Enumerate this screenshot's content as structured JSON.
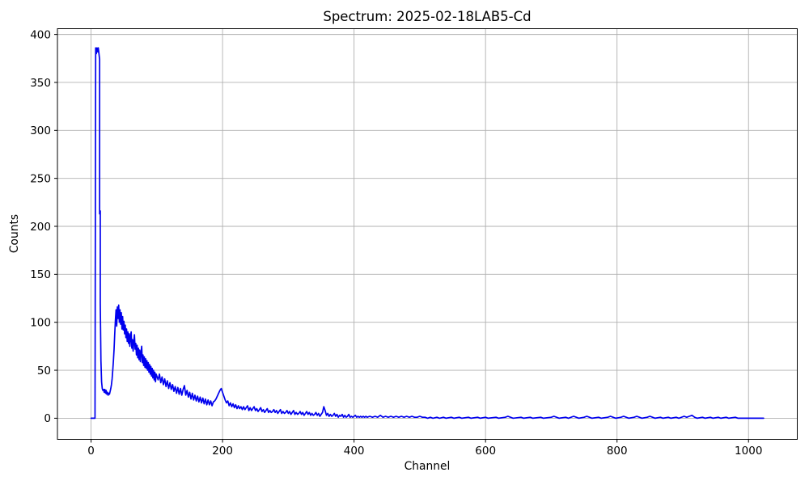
{
  "chart_data": {
    "type": "line",
    "title": "Spectrum: 2025-02-18LAB5-Cd",
    "xlabel": "Channel",
    "ylabel": "Counts",
    "x_ticks": [
      0,
      200,
      400,
      600,
      800,
      1000
    ],
    "y_ticks": [
      0,
      50,
      100,
      150,
      200,
      250,
      300,
      350,
      400
    ],
    "xlim": [
      -51.15,
      1074.15
    ],
    "ylim": [
      -22,
      406
    ],
    "grid": true,
    "legend": null,
    "line_color": "#0000ee",
    "grid_color": "#b0b0b0",
    "spine_color": "#000000",
    "peak_max_counts": 386,
    "points": [
      [
        0,
        0
      ],
      [
        6,
        0
      ],
      [
        7,
        386
      ],
      [
        8,
        380
      ],
      [
        9,
        386
      ],
      [
        10,
        382
      ],
      [
        11,
        386
      ],
      [
        12,
        380
      ],
      [
        13,
        374
      ],
      [
        13,
        213
      ],
      [
        14,
        216
      ],
      [
        14,
        120
      ],
      [
        15,
        60
      ],
      [
        16,
        38
      ],
      [
        17,
        31
      ],
      [
        18,
        29
      ],
      [
        19,
        30
      ],
      [
        20,
        27
      ],
      [
        21,
        30
      ],
      [
        22,
        26
      ],
      [
        23,
        29
      ],
      [
        24,
        25
      ],
      [
        25,
        27
      ],
      [
        26,
        24
      ],
      [
        27,
        26
      ],
      [
        28,
        25
      ],
      [
        29,
        28
      ],
      [
        30,
        31
      ],
      [
        31,
        35
      ],
      [
        32,
        41
      ],
      [
        33,
        50
      ],
      [
        34,
        60
      ],
      [
        35,
        72
      ],
      [
        36,
        88
      ],
      [
        37,
        102
      ],
      [
        38,
        113
      ],
      [
        39,
        96
      ],
      [
        40,
        116
      ],
      [
        41,
        104
      ],
      [
        42,
        118
      ],
      [
        43,
        100
      ],
      [
        44,
        113
      ],
      [
        45,
        98
      ],
      [
        46,
        110
      ],
      [
        47,
        93
      ],
      [
        48,
        106
      ],
      [
        49,
        92
      ],
      [
        50,
        101
      ],
      [
        51,
        88
      ],
      [
        52,
        97
      ],
      [
        53,
        84
      ],
      [
        54,
        93
      ],
      [
        55,
        80
      ],
      [
        56,
        90
      ],
      [
        57,
        78
      ],
      [
        58,
        88
      ],
      [
        59,
        75
      ],
      [
        60,
        85
      ],
      [
        61,
        90
      ],
      [
        62,
        73
      ],
      [
        63,
        82
      ],
      [
        64,
        70
      ],
      [
        65,
        80
      ],
      [
        66,
        87
      ],
      [
        67,
        72
      ],
      [
        68,
        78
      ],
      [
        69,
        66
      ],
      [
        70,
        76
      ],
      [
        71,
        63
      ],
      [
        72,
        73
      ],
      [
        73,
        61
      ],
      [
        74,
        71
      ],
      [
        75,
        59
      ],
      [
        76,
        68
      ],
      [
        77,
        75
      ],
      [
        78,
        58
      ],
      [
        79,
        66
      ],
      [
        80,
        55
      ],
      [
        81,
        64
      ],
      [
        82,
        53
      ],
      [
        83,
        62
      ],
      [
        84,
        52
      ],
      [
        85,
        60
      ],
      [
        86,
        50
      ],
      [
        87,
        58
      ],
      [
        88,
        48
      ],
      [
        89,
        56
      ],
      [
        90,
        46
      ],
      [
        91,
        54
      ],
      [
        92,
        44
      ],
      [
        93,
        52
      ],
      [
        94,
        42
      ],
      [
        95,
        50
      ],
      [
        96,
        40
      ],
      [
        97,
        48
      ],
      [
        98,
        38
      ],
      [
        99,
        46
      ],
      [
        100,
        44
      ],
      [
        102,
        40
      ],
      [
        104,
        46
      ],
      [
        106,
        37
      ],
      [
        108,
        43
      ],
      [
        110,
        35
      ],
      [
        112,
        41
      ],
      [
        114,
        33
      ],
      [
        116,
        39
      ],
      [
        118,
        31
      ],
      [
        120,
        37
      ],
      [
        122,
        30
      ],
      [
        124,
        35
      ],
      [
        126,
        28
      ],
      [
        128,
        33
      ],
      [
        130,
        26
      ],
      [
        132,
        32
      ],
      [
        134,
        25
      ],
      [
        136,
        31
      ],
      [
        138,
        24
      ],
      [
        140,
        30
      ],
      [
        142,
        34
      ],
      [
        144,
        24
      ],
      [
        146,
        29
      ],
      [
        148,
        22
      ],
      [
        150,
        27
      ],
      [
        152,
        20
      ],
      [
        154,
        26
      ],
      [
        156,
        19
      ],
      [
        158,
        24
      ],
      [
        160,
        18
      ],
      [
        162,
        23
      ],
      [
        164,
        17
      ],
      [
        166,
        22
      ],
      [
        168,
        16
      ],
      [
        170,
        21
      ],
      [
        172,
        15
      ],
      [
        174,
        20
      ],
      [
        176,
        14
      ],
      [
        178,
        19
      ],
      [
        180,
        14
      ],
      [
        182,
        18
      ],
      [
        184,
        13
      ],
      [
        186,
        17
      ],
      [
        188,
        18
      ],
      [
        190,
        20
      ],
      [
        192,
        23
      ],
      [
        194,
        26
      ],
      [
        196,
        29
      ],
      [
        198,
        31
      ],
      [
        200,
        27
      ],
      [
        202,
        23
      ],
      [
        204,
        19
      ],
      [
        206,
        16
      ],
      [
        208,
        18
      ],
      [
        210,
        13
      ],
      [
        212,
        16
      ],
      [
        214,
        12
      ],
      [
        216,
        15
      ],
      [
        218,
        11
      ],
      [
        220,
        14
      ],
      [
        222,
        10
      ],
      [
        224,
        13
      ],
      [
        226,
        10
      ],
      [
        228,
        12
      ],
      [
        230,
        9
      ],
      [
        232,
        12
      ],
      [
        234,
        9
      ],
      [
        236,
        11
      ],
      [
        238,
        13
      ],
      [
        240,
        8
      ],
      [
        242,
        11
      ],
      [
        244,
        8
      ],
      [
        246,
        10
      ],
      [
        248,
        12
      ],
      [
        250,
        8
      ],
      [
        252,
        10
      ],
      [
        254,
        7
      ],
      [
        256,
        9
      ],
      [
        258,
        11
      ],
      [
        260,
        7
      ],
      [
        262,
        9
      ],
      [
        264,
        6
      ],
      [
        266,
        8
      ],
      [
        268,
        10
      ],
      [
        270,
        6
      ],
      [
        272,
        8
      ],
      [
        274,
        6
      ],
      [
        276,
        7
      ],
      [
        278,
        9
      ],
      [
        280,
        6
      ],
      [
        282,
        8
      ],
      [
        284,
        5
      ],
      [
        286,
        7
      ],
      [
        288,
        9
      ],
      [
        290,
        5
      ],
      [
        292,
        7
      ],
      [
        294,
        5
      ],
      [
        296,
        6
      ],
      [
        298,
        8
      ],
      [
        300,
        5
      ],
      [
        302,
        7
      ],
      [
        304,
        4
      ],
      [
        306,
        6
      ],
      [
        308,
        8
      ],
      [
        310,
        4
      ],
      [
        312,
        6
      ],
      [
        314,
        4
      ],
      [
        316,
        5
      ],
      [
        318,
        7
      ],
      [
        320,
        4
      ],
      [
        322,
        6
      ],
      [
        324,
        3
      ],
      [
        326,
        5
      ],
      [
        328,
        7
      ],
      [
        330,
        4
      ],
      [
        332,
        6
      ],
      [
        334,
        3
      ],
      [
        336,
        5
      ],
      [
        338,
        3
      ],
      [
        340,
        4
      ],
      [
        342,
        6
      ],
      [
        344,
        3
      ],
      [
        346,
        5
      ],
      [
        348,
        2
      ],
      [
        350,
        4
      ],
      [
        352,
        6
      ],
      [
        354,
        12
      ],
      [
        356,
        8
      ],
      [
        358,
        3
      ],
      [
        360,
        5
      ],
      [
        362,
        2
      ],
      [
        364,
        4
      ],
      [
        366,
        2
      ],
      [
        368,
        3
      ],
      [
        370,
        5
      ],
      [
        372,
        2
      ],
      [
        374,
        4
      ],
      [
        376,
        1
      ],
      [
        378,
        3
      ],
      [
        380,
        2
      ],
      [
        382,
        4
      ],
      [
        384,
        1
      ],
      [
        386,
        3
      ],
      [
        388,
        1
      ],
      [
        390,
        2
      ],
      [
        392,
        4
      ],
      [
        394,
        1
      ],
      [
        396,
        2
      ],
      [
        398,
        1
      ],
      [
        400,
        2
      ],
      [
        402,
        3
      ],
      [
        404,
        1
      ],
      [
        406,
        2
      ],
      [
        408,
        1
      ],
      [
        410,
        2
      ],
      [
        412,
        1
      ],
      [
        414,
        2
      ],
      [
        416,
        1
      ],
      [
        418,
        2
      ],
      [
        420,
        1
      ],
      [
        424,
        2
      ],
      [
        428,
        1
      ],
      [
        432,
        2
      ],
      [
        436,
        1
      ],
      [
        440,
        3
      ],
      [
        444,
        1
      ],
      [
        448,
        2
      ],
      [
        452,
        1
      ],
      [
        456,
        2
      ],
      [
        460,
        1
      ],
      [
        464,
        2
      ],
      [
        468,
        1
      ],
      [
        472,
        2
      ],
      [
        476,
        1
      ],
      [
        480,
        2
      ],
      [
        484,
        1
      ],
      [
        488,
        2
      ],
      [
        492,
        1
      ],
      [
        496,
        1
      ],
      [
        500,
        2
      ],
      [
        504,
        1
      ],
      [
        508,
        1
      ],
      [
        512,
        0
      ],
      [
        516,
        1
      ],
      [
        520,
        0
      ],
      [
        526,
        1
      ],
      [
        530,
        0
      ],
      [
        536,
        1
      ],
      [
        540,
        0
      ],
      [
        548,
        1
      ],
      [
        552,
        0
      ],
      [
        560,
        1
      ],
      [
        564,
        0
      ],
      [
        574,
        1
      ],
      [
        578,
        0
      ],
      [
        588,
        1
      ],
      [
        592,
        0
      ],
      [
        600,
        1
      ],
      [
        604,
        0
      ],
      [
        616,
        1
      ],
      [
        620,
        0
      ],
      [
        630,
        1
      ],
      [
        634,
        2
      ],
      [
        638,
        1
      ],
      [
        642,
        0
      ],
      [
        654,
        1
      ],
      [
        658,
        0
      ],
      [
        668,
        1
      ],
      [
        672,
        0
      ],
      [
        684,
        1
      ],
      [
        688,
        0
      ],
      [
        700,
        1
      ],
      [
        704,
        2
      ],
      [
        708,
        1
      ],
      [
        712,
        0
      ],
      [
        722,
        1
      ],
      [
        726,
        0
      ],
      [
        734,
        2
      ],
      [
        738,
        1
      ],
      [
        742,
        0
      ],
      [
        750,
        1
      ],
      [
        754,
        2
      ],
      [
        758,
        1
      ],
      [
        762,
        0
      ],
      [
        772,
        1
      ],
      [
        776,
        0
      ],
      [
        786,
        1
      ],
      [
        790,
        2
      ],
      [
        794,
        1
      ],
      [
        798,
        0
      ],
      [
        806,
        1
      ],
      [
        810,
        2
      ],
      [
        814,
        1
      ],
      [
        818,
        0
      ],
      [
        826,
        1
      ],
      [
        830,
        2
      ],
      [
        834,
        1
      ],
      [
        838,
        0
      ],
      [
        846,
        1
      ],
      [
        850,
        2
      ],
      [
        854,
        1
      ],
      [
        858,
        0
      ],
      [
        866,
        1
      ],
      [
        870,
        0
      ],
      [
        878,
        1
      ],
      [
        882,
        0
      ],
      [
        890,
        1
      ],
      [
        894,
        0
      ],
      [
        902,
        2
      ],
      [
        906,
        1
      ],
      [
        910,
        2
      ],
      [
        914,
        3
      ],
      [
        918,
        1
      ],
      [
        922,
        0
      ],
      [
        930,
        1
      ],
      [
        934,
        0
      ],
      [
        942,
        1
      ],
      [
        946,
        0
      ],
      [
        954,
        1
      ],
      [
        958,
        0
      ],
      [
        966,
        1
      ],
      [
        970,
        0
      ],
      [
        980,
        1
      ],
      [
        984,
        0
      ],
      [
        1000,
        0
      ],
      [
        1023,
        0
      ]
    ]
  }
}
